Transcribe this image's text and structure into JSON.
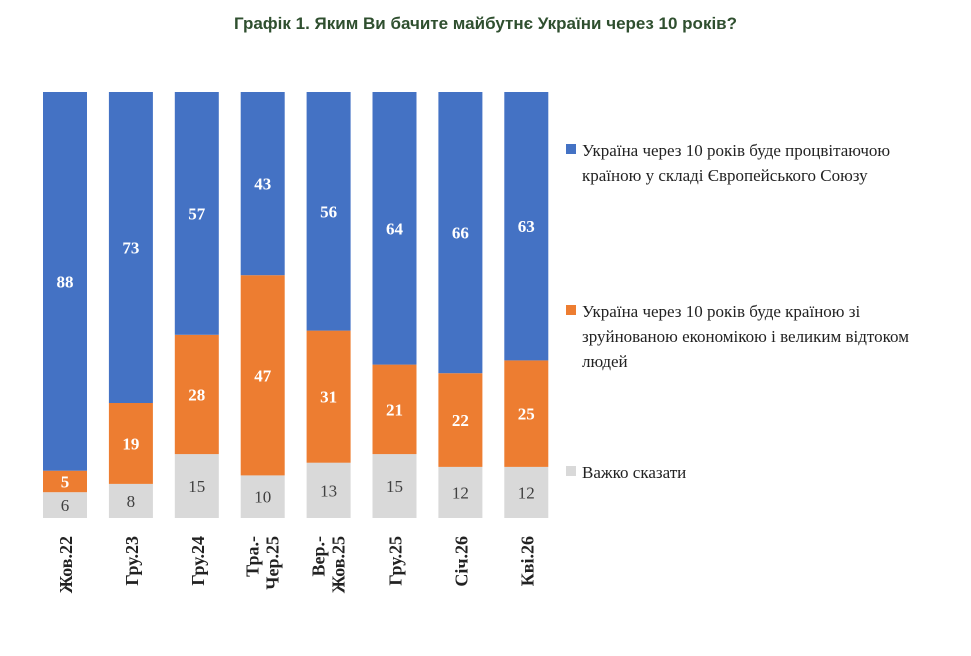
{
  "chart_data": {
    "type": "bar",
    "stacked": true,
    "percent": true,
    "title": "Графік 1. Яким Ви бачите майбутнє України через 10 років?",
    "categories": [
      "Жов.22",
      "Гру.23",
      "Гру.24",
      "Тра.-\nЧер.25",
      "Вер.-\nЖов.25",
      "Гру.25",
      "Січ.26",
      "Кві.26"
    ],
    "series": [
      {
        "name": "Важко сказати",
        "color": "#d9d9d9",
        "label_color": "#404040",
        "values": [
          6,
          8,
          15,
          10,
          13,
          15,
          12,
          12
        ]
      },
      {
        "name": "Україна через 10 років буде країною зі зруйнованою економікою і великим відтоком людей",
        "color": "#ed7d31",
        "label_color": "#ffffff",
        "values": [
          5,
          19,
          28,
          47,
          31,
          21,
          22,
          25
        ]
      },
      {
        "name": "Україна через 10 років буде процвітаючою країною у складі Європейського Союзу",
        "color": "#4472c4",
        "label_color": "#ffffff",
        "values": [
          88,
          73,
          57,
          43,
          56,
          64,
          66,
          63
        ]
      }
    ],
    "legend_position": "right",
    "grid": false
  },
  "legend": [
    {
      "label": "Україна через 10 років буде процвітаючою країною у складі Європейського Союзу",
      "color": "#4472c4"
    },
    {
      "label": "Україна через 10 років буде країною зі зруйнованою економікою і великим відтоком людей",
      "color": "#ed7d31"
    },
    {
      "label": "Важко сказати",
      "color": "#d9d9d9"
    }
  ]
}
